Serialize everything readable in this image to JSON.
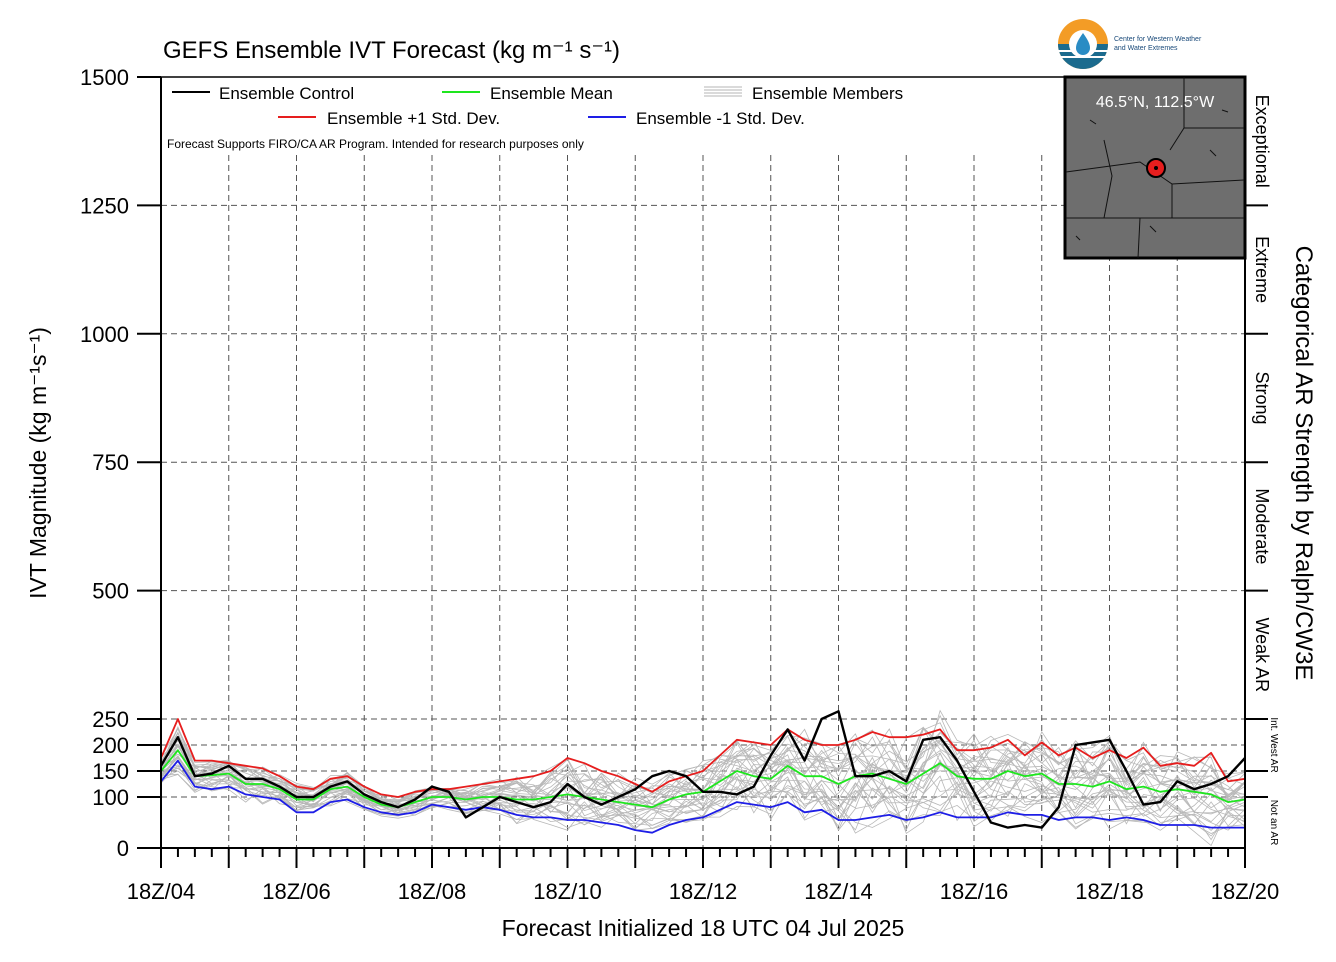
{
  "chart_data": {
    "type": "line",
    "title": "GEFS Ensemble IVT Forecast (kg m⁻¹ s⁻¹)",
    "xlabel": "Forecast Initialized 18 UTC 04 Jul 2025",
    "ylabel": "IVT Magnitude (kg m⁻¹s⁻¹)",
    "right_label": "Categorical AR Strength by Ralph/CW3E",
    "disclaimer": "Forecast Supports FIRO/CA AR Program. Intended for research purposes only",
    "location": "46.5°N, 112.5°W",
    "logo_text": [
      "Center for Western Weather",
      "and Water Extremes"
    ],
    "ylim": [
      0,
      1500
    ],
    "yticks": [
      0,
      100,
      150,
      200,
      250,
      500,
      750,
      1000,
      1250,
      1500
    ],
    "xlim": [
      0,
      384
    ],
    "xticks": [
      0,
      48,
      96,
      144,
      192,
      240,
      288,
      336,
      384
    ],
    "xtick_labels": [
      "18Z/04",
      "18Z/06",
      "18Z/08",
      "18Z/10",
      "18Z/12",
      "18Z/14",
      "18Z/16",
      "18Z/18",
      "18Z/20"
    ],
    "x_unit": "forecast hour",
    "categories_ar": [
      {
        "label": "Not an AR",
        "range": [
          0,
          100
        ]
      },
      {
        "label": "Int. West AR",
        "range": [
          150,
          250
        ]
      },
      {
        "label": "Weak AR",
        "range": [
          250,
          500
        ]
      },
      {
        "label": "Moderate",
        "range": [
          500,
          750
        ]
      },
      {
        "label": "Strong",
        "range": [
          750,
          1000
        ]
      },
      {
        "label": "Extreme",
        "range": [
          1000,
          1250
        ]
      },
      {
        "label": "Exceptional",
        "range": [
          1250,
          1500
        ]
      }
    ],
    "series": [
      {
        "name": "Ensemble Control",
        "color": "#000000",
        "x": [
          0,
          6,
          12,
          18,
          24,
          30,
          36,
          42,
          48,
          54,
          60,
          66,
          72,
          78,
          84,
          90,
          96,
          102,
          108,
          114,
          120,
          126,
          132,
          138,
          144,
          150,
          156,
          162,
          168,
          174,
          180,
          186,
          192,
          198,
          204,
          210,
          216,
          222,
          228,
          234,
          240,
          246,
          252,
          258,
          264,
          270,
          276,
          282,
          288,
          294,
          300,
          306,
          312,
          318,
          324,
          330,
          336,
          342,
          348,
          354,
          360,
          366,
          372,
          378,
          384
        ],
        "y": [
          160,
          215,
          140,
          145,
          160,
          135,
          135,
          120,
          100,
          100,
          120,
          130,
          105,
          90,
          80,
          95,
          120,
          110,
          60,
          80,
          100,
          90,
          80,
          90,
          125,
          100,
          85,
          100,
          115,
          140,
          150,
          140,
          110,
          110,
          105,
          120,
          180,
          230,
          170,
          250,
          265,
          140,
          140,
          150,
          130,
          210,
          215,
          170,
          110,
          50,
          40,
          45,
          40,
          80,
          200,
          205,
          210,
          150,
          85,
          90,
          130,
          115,
          125,
          140,
          175
        ]
      },
      {
        "name": "Ensemble Mean",
        "color": "#1ee61e",
        "x": [
          0,
          6,
          12,
          18,
          24,
          30,
          36,
          42,
          48,
          54,
          60,
          66,
          72,
          78,
          84,
          90,
          96,
          102,
          108,
          114,
          120,
          126,
          132,
          138,
          144,
          150,
          156,
          162,
          168,
          174,
          180,
          186,
          192,
          198,
          204,
          210,
          216,
          222,
          228,
          234,
          240,
          246,
          252,
          258,
          264,
          270,
          276,
          282,
          288,
          294,
          300,
          306,
          312,
          318,
          324,
          330,
          336,
          342,
          348,
          354,
          360,
          366,
          372,
          378,
          384
        ],
        "y": [
          150,
          190,
          140,
          142,
          145,
          125,
          125,
          115,
          95,
          95,
          115,
          120,
          100,
          85,
          80,
          90,
          100,
          100,
          95,
          100,
          100,
          95,
          95,
          100,
          105,
          100,
          95,
          90,
          85,
          80,
          95,
          105,
          110,
          130,
          150,
          140,
          135,
          160,
          140,
          140,
          125,
          140,
          145,
          135,
          125,
          145,
          165,
          140,
          135,
          135,
          150,
          140,
          145,
          125,
          125,
          120,
          130,
          115,
          120,
          110,
          115,
          110,
          105,
          90,
          95
        ]
      },
      {
        "name": "Ensemble +1 Std. Dev.",
        "color": "#e61e1e",
        "x": [
          0,
          6,
          12,
          18,
          24,
          30,
          36,
          42,
          48,
          54,
          60,
          66,
          72,
          78,
          84,
          90,
          96,
          102,
          108,
          114,
          120,
          126,
          132,
          138,
          144,
          150,
          156,
          162,
          168,
          174,
          180,
          186,
          192,
          198,
          204,
          210,
          216,
          222,
          228,
          234,
          240,
          246,
          252,
          258,
          264,
          270,
          276,
          282,
          288,
          294,
          300,
          306,
          312,
          318,
          324,
          330,
          336,
          342,
          348,
          354,
          360,
          366,
          372,
          378,
          384
        ],
        "y": [
          175,
          250,
          170,
          170,
          165,
          160,
          155,
          140,
          120,
          115,
          135,
          140,
          120,
          105,
          100,
          110,
          115,
          115,
          120,
          125,
          130,
          135,
          140,
          150,
          175,
          165,
          150,
          140,
          125,
          110,
          130,
          140,
          150,
          180,
          210,
          205,
          200,
          230,
          210,
          200,
          200,
          210,
          225,
          215,
          215,
          220,
          230,
          190,
          190,
          195,
          210,
          180,
          205,
          180,
          195,
          175,
          190,
          175,
          195,
          160,
          165,
          160,
          185,
          130,
          135
        ]
      },
      {
        "name": "Ensemble -1 Std. Dev.",
        "color": "#1e1ee6",
        "x": [
          0,
          6,
          12,
          18,
          24,
          30,
          36,
          42,
          48,
          54,
          60,
          66,
          72,
          78,
          84,
          90,
          96,
          102,
          108,
          114,
          120,
          126,
          132,
          138,
          144,
          150,
          156,
          162,
          168,
          174,
          180,
          186,
          192,
          198,
          204,
          210,
          216,
          222,
          228,
          234,
          240,
          246,
          252,
          258,
          264,
          270,
          276,
          282,
          288,
          294,
          300,
          306,
          312,
          318,
          324,
          330,
          336,
          342,
          348,
          354,
          360,
          366,
          372,
          378,
          384
        ],
        "y": [
          130,
          170,
          120,
          115,
          120,
          105,
          100,
          95,
          70,
          70,
          90,
          95,
          80,
          70,
          65,
          70,
          85,
          80,
          75,
          80,
          75,
          65,
          60,
          60,
          55,
          55,
          50,
          45,
          35,
          30,
          45,
          55,
          60,
          75,
          90,
          85,
          80,
          90,
          70,
          75,
          55,
          55,
          60,
          65,
          55,
          60,
          70,
          60,
          60,
          60,
          70,
          65,
          65,
          55,
          60,
          60,
          55,
          60,
          55,
          45,
          45,
          45,
          40,
          40,
          40
        ]
      }
    ],
    "members_count": 30
  },
  "legend": {
    "control": "Ensemble Control",
    "mean": "Ensemble Mean",
    "members": "Ensemble Members",
    "plus": "Ensemble +1 Std. Dev.",
    "minus": "Ensemble -1 Std. Dev."
  }
}
